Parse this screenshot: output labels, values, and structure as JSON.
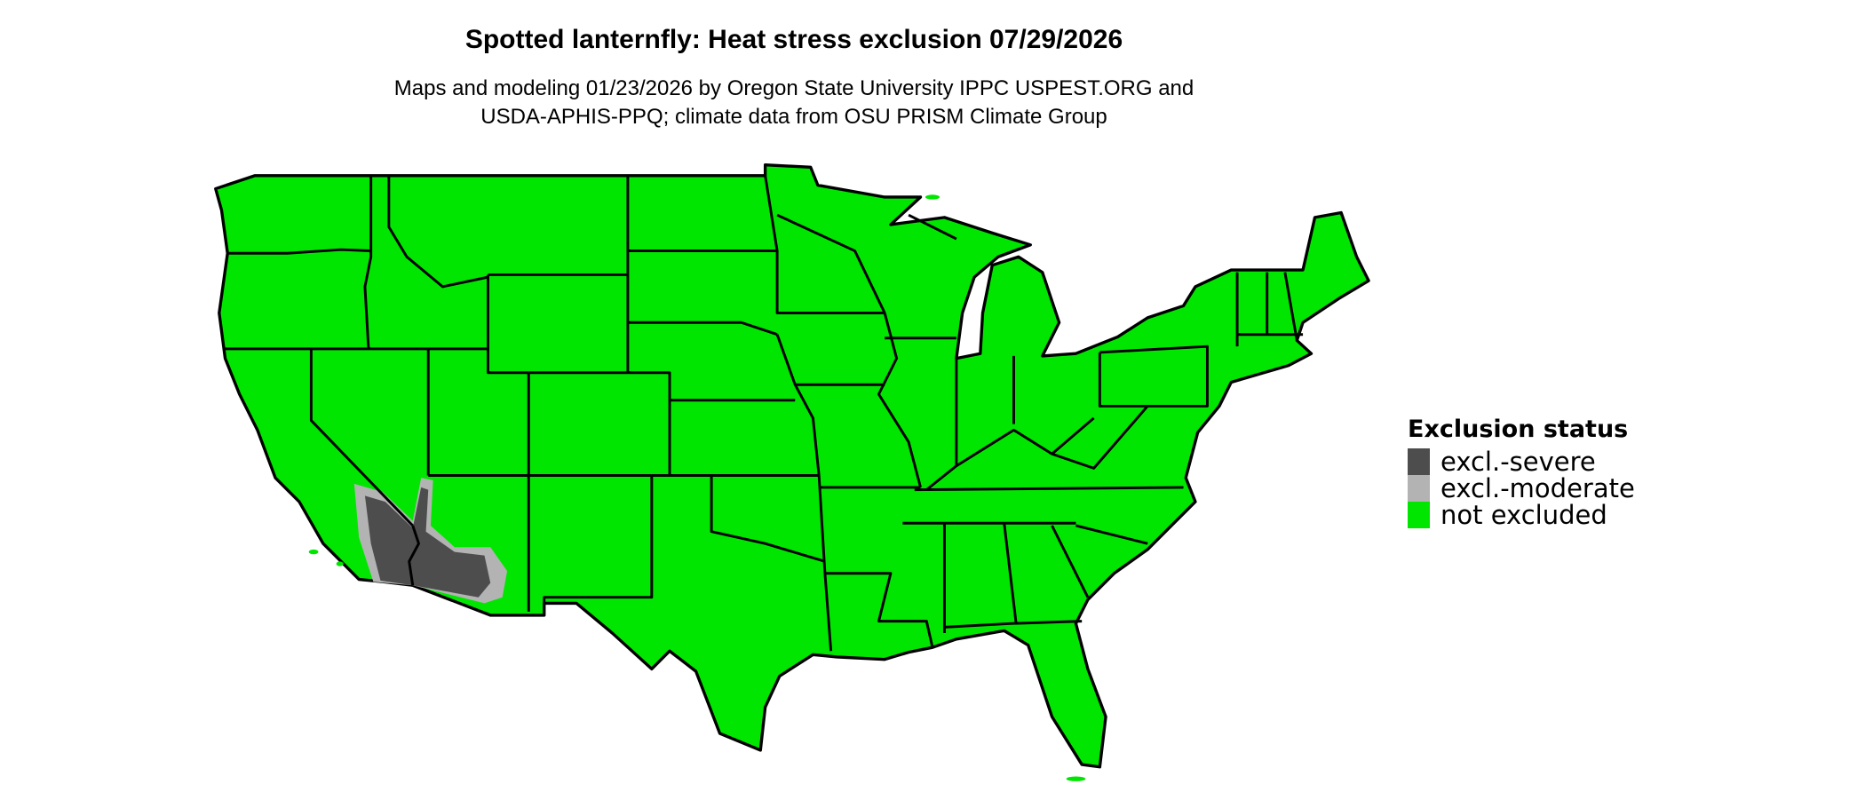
{
  "title": "Spotted lanternfly: Heat stress exclusion 07/29/2026",
  "subtitle_line1": "Maps and modeling 01/23/2026 by Oregon State University IPPC USPEST.ORG and",
  "subtitle_line2": "USDA-APHIS-PPQ; climate data from OSU PRISM Climate Group",
  "legend": {
    "title": "Exclusion status",
    "items": [
      {
        "label": "excl.-severe",
        "color": "#4d4d4d"
      },
      {
        "label": "excl.-moderate",
        "color": "#b3b3b3"
      },
      {
        "label": "not excluded",
        "color": "#00e600"
      }
    ]
  },
  "map": {
    "region": "Contiguous United States",
    "base_color": "#00e600",
    "border_color": "#000000",
    "excluded_area": "Southwestern Arizona and southeastern California (lower Colorado River / Mojave–Sonoran deserts)"
  }
}
